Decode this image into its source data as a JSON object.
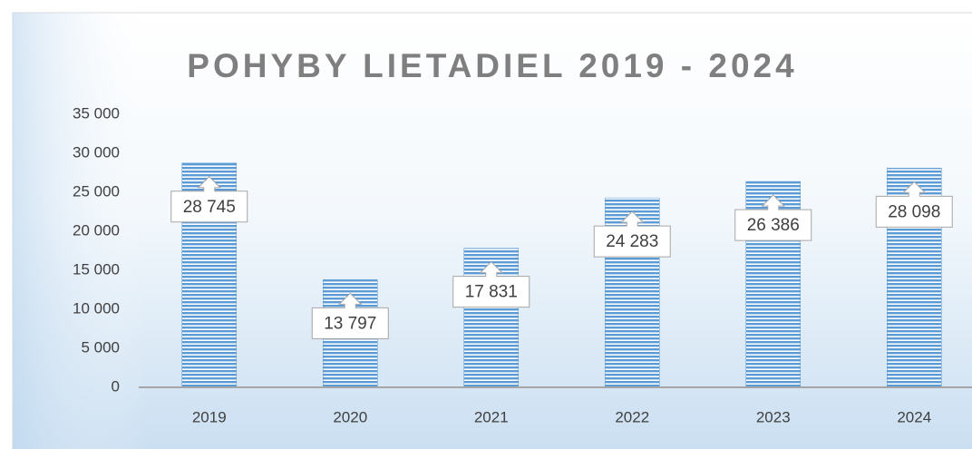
{
  "chart_data": {
    "type": "bar",
    "title": "POHYBY LIETADIEL 2019 - 2024",
    "categories": [
      "2019",
      "2020",
      "2021",
      "2022",
      "2023",
      "2024"
    ],
    "values": [
      28745,
      13797,
      17831,
      24283,
      26386,
      28098
    ],
    "value_labels": [
      "28 745",
      "13 797",
      "17 831",
      "24 283",
      "26 386",
      "28 098"
    ],
    "color": "#5b9bd5",
    "ylim": [
      0,
      35000
    ],
    "yticks": [
      0,
      {
        "value": 5000,
        "label": "5 000"
      },
      {
        "value": 10000,
        "label": "10 000"
      },
      {
        "value": 15000,
        "label": "15 000"
      },
      {
        "value": 20000,
        "label": "20 000"
      },
      {
        "value": 25000,
        "label": "25 000"
      },
      {
        "value": 30000,
        "label": "30 000"
      },
      {
        "value": 35000,
        "label": "35 000"
      }
    ],
    "grid": false
  }
}
